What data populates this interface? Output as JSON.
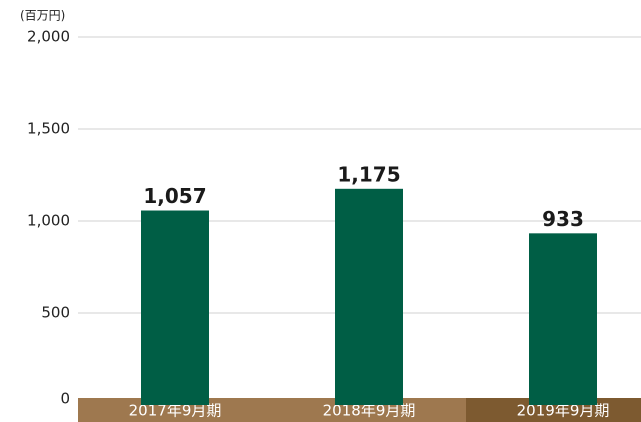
{
  "chart_data": {
    "type": "bar",
    "unit_label": "(百万円)",
    "categories": [
      "2017年9月期",
      "2018年9月期",
      "2019年9月期"
    ],
    "values": [
      1057,
      1175,
      933
    ],
    "value_labels": [
      "1,057",
      "1,175",
      "933"
    ],
    "color": "#005e45",
    "band_colors": [
      "#9e784f",
      "#9e784f",
      "#7d5a30"
    ],
    "ylim": [
      0,
      2000
    ],
    "yticks": [
      0,
      500,
      {
        "value": 1000,
        "label": "1,000"
      },
      {
        "value": 1500,
        "label": "1,500"
      },
      {
        "value": 2000,
        "label": "2,000"
      }
    ],
    "grid": true
  }
}
